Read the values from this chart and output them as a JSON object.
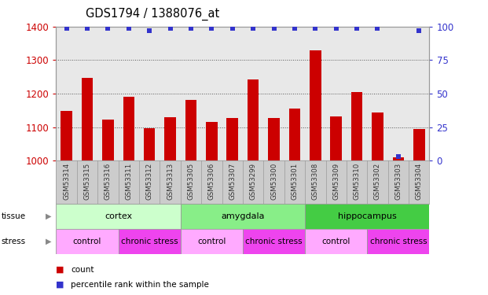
{
  "title": "GDS1794 / 1388076_at",
  "samples": [
    "GSM53314",
    "GSM53315",
    "GSM53316",
    "GSM53311",
    "GSM53312",
    "GSM53313",
    "GSM53305",
    "GSM53306",
    "GSM53307",
    "GSM53299",
    "GSM53300",
    "GSM53301",
    "GSM53308",
    "GSM53309",
    "GSM53310",
    "GSM53302",
    "GSM53303",
    "GSM53304"
  ],
  "counts": [
    1148,
    1248,
    1122,
    1190,
    1098,
    1130,
    1182,
    1115,
    1128,
    1242,
    1127,
    1155,
    1330,
    1132,
    1205,
    1145,
    1010,
    1095
  ],
  "percentiles": [
    100,
    100,
    100,
    100,
    97,
    100,
    100,
    100,
    100,
    100,
    100,
    100,
    100,
    100,
    100,
    100,
    3,
    97
  ],
  "ylim_left": [
    1000,
    1400
  ],
  "ylim_right": [
    0,
    100
  ],
  "yticks_left": [
    1000,
    1100,
    1200,
    1300,
    1400
  ],
  "yticks_right": [
    0,
    25,
    50,
    75,
    100
  ],
  "bar_color": "#cc0000",
  "dot_color": "#3333cc",
  "bar_width": 0.55,
  "tissue_groups": [
    {
      "label": "cortex",
      "start": 0,
      "end": 6,
      "color": "#ccffcc"
    },
    {
      "label": "amygdala",
      "start": 6,
      "end": 12,
      "color": "#88ee88"
    },
    {
      "label": "hippocampus",
      "start": 12,
      "end": 18,
      "color": "#44cc44"
    }
  ],
  "stress_groups": [
    {
      "label": "control",
      "start": 0,
      "end": 3,
      "color": "#ffaaff"
    },
    {
      "label": "chronic stress",
      "start": 3,
      "end": 6,
      "color": "#ee44ee"
    },
    {
      "label": "control",
      "start": 6,
      "end": 9,
      "color": "#ffaaff"
    },
    {
      "label": "chronic stress",
      "start": 9,
      "end": 12,
      "color": "#ee44ee"
    },
    {
      "label": "control",
      "start": 12,
      "end": 15,
      "color": "#ffaaff"
    },
    {
      "label": "chronic stress",
      "start": 15,
      "end": 18,
      "color": "#ee44ee"
    }
  ],
  "legend_count_color": "#cc0000",
  "legend_dot_color": "#3333cc",
  "left_tick_color": "#cc0000",
  "right_tick_color": "#3333cc",
  "background_color": "#ffffff",
  "plot_bg_color": "#e8e8e8",
  "xticklabel_bg": "#cccccc"
}
